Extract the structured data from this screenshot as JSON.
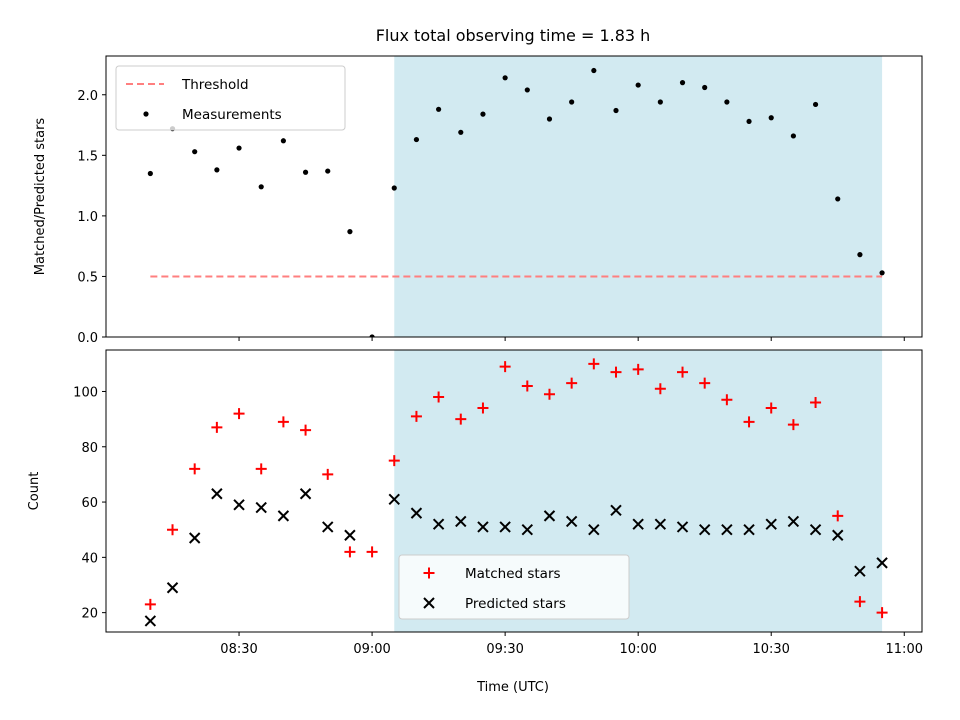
{
  "figure": {
    "title": "Flux total observing time = 1.83 h",
    "xlabel": "Time (UTC)"
  },
  "chart_data": [
    {
      "type": "scatter",
      "ylabel": "Matched/Predicted stars",
      "xlim": [
        "08:00",
        "11:04"
      ],
      "ylim": [
        0,
        2.32
      ],
      "yticks": [
        0.0,
        0.5,
        1.0,
        1.5,
        2.0
      ],
      "ytick_labels": [
        "0.0",
        "0.5",
        "1.0",
        "1.5",
        "2.0"
      ],
      "xticks": [
        "08:30",
        "09:00",
        "09:30",
        "10:00",
        "10:30",
        "11:00"
      ],
      "shaded_region": {
        "from": "09:05",
        "to": "10:55",
        "color": "#add8e6"
      },
      "legend_position": "upper-left",
      "legend": [
        {
          "label": "Threshold",
          "marker": "dashed-line",
          "color": "#ff7f7f"
        },
        {
          "label": "Measurements",
          "marker": "dot",
          "color": "#000000"
        }
      ],
      "series": [
        {
          "name": "Threshold",
          "style": "dashed",
          "color": "#ff7f7f",
          "x": [
            "08:10",
            "10:55"
          ],
          "y": [
            0.5,
            0.5
          ]
        },
        {
          "name": "Measurements",
          "style": "dot",
          "color": "#000000",
          "x": [
            "08:10",
            "08:15",
            "08:20",
            "08:25",
            "08:30",
            "08:35",
            "08:40",
            "08:45",
            "08:50",
            "08:55",
            "09:00",
            "09:05",
            "09:10",
            "09:15",
            "09:20",
            "09:25",
            "09:30",
            "09:35",
            "09:40",
            "09:45",
            "09:50",
            "09:55",
            "10:00",
            "10:05",
            "10:10",
            "10:15",
            "10:20",
            "10:25",
            "10:30",
            "10:35",
            "10:40",
            "10:45",
            "10:50",
            "10:55"
          ],
          "y": [
            1.35,
            1.72,
            1.53,
            1.38,
            1.56,
            1.24,
            1.62,
            1.36,
            1.37,
            0.87,
            0.0,
            1.23,
            1.63,
            1.88,
            1.69,
            1.84,
            2.14,
            2.04,
            1.8,
            1.94,
            2.2,
            1.87,
            2.08,
            1.94,
            2.1,
            2.06,
            1.94,
            1.78,
            1.81,
            1.66,
            1.92,
            1.14,
            0.68,
            0.53
          ]
        }
      ]
    },
    {
      "type": "scatter",
      "ylabel": "Count",
      "xlim": [
        "08:00",
        "11:04"
      ],
      "ylim": [
        13,
        115
      ],
      "yticks": [
        20,
        40,
        60,
        80,
        100
      ],
      "ytick_labels": [
        "20",
        "40",
        "60",
        "80",
        "100"
      ],
      "xticks": [
        "08:30",
        "09:00",
        "09:30",
        "10:00",
        "10:30",
        "11:00"
      ],
      "xtick_labels": [
        "08:30",
        "09:00",
        "09:30",
        "10:00",
        "10:30",
        "11:00"
      ],
      "shaded_region": {
        "from": "09:05",
        "to": "10:55",
        "color": "#add8e6"
      },
      "legend_position": "lower-center",
      "legend": [
        {
          "label": "Matched stars",
          "marker": "plus",
          "color": "#ff0000"
        },
        {
          "label": "Predicted stars",
          "marker": "x",
          "color": "#000000"
        }
      ],
      "series": [
        {
          "name": "Matched stars",
          "marker": "plus",
          "color": "#ff0000",
          "x": [
            "08:10",
            "08:15",
            "08:20",
            "08:25",
            "08:30",
            "08:35",
            "08:40",
            "08:45",
            "08:50",
            "08:55",
            "09:00",
            "09:05",
            "09:10",
            "09:15",
            "09:20",
            "09:25",
            "09:30",
            "09:35",
            "09:40",
            "09:45",
            "09:50",
            "09:55",
            "10:00",
            "10:05",
            "10:10",
            "10:15",
            "10:20",
            "10:25",
            "10:30",
            "10:35",
            "10:40",
            "10:45",
            "10:50",
            "10:55"
          ],
          "y": [
            23,
            50,
            72,
            87,
            92,
            72,
            89,
            86,
            70,
            42,
            42,
            75,
            91,
            98,
            90,
            94,
            109,
            102,
            99,
            103,
            110,
            107,
            108,
            101,
            107,
            103,
            97,
            89,
            94,
            88,
            96,
            55,
            24,
            20
          ]
        },
        {
          "name": "Predicted stars",
          "marker": "x",
          "color": "#000000",
          "x": [
            "08:10",
            "08:15",
            "08:20",
            "08:25",
            "08:30",
            "08:35",
            "08:40",
            "08:45",
            "08:50",
            "08:55",
            "09:05",
            "09:10",
            "09:15",
            "09:20",
            "09:25",
            "09:30",
            "09:35",
            "09:40",
            "09:45",
            "09:50",
            "09:55",
            "10:00",
            "10:05",
            "10:10",
            "10:15",
            "10:20",
            "10:25",
            "10:30",
            "10:35",
            "10:40",
            "10:45",
            "10:50",
            "10:55"
          ],
          "y": [
            17,
            29,
            47,
            63,
            59,
            58,
            55,
            63,
            51,
            48,
            61,
            56,
            52,
            53,
            51,
            51,
            50,
            55,
            53,
            50,
            57,
            52,
            52,
            51,
            50,
            50,
            50,
            52,
            53,
            50,
            48,
            35,
            38
          ]
        }
      ]
    }
  ]
}
